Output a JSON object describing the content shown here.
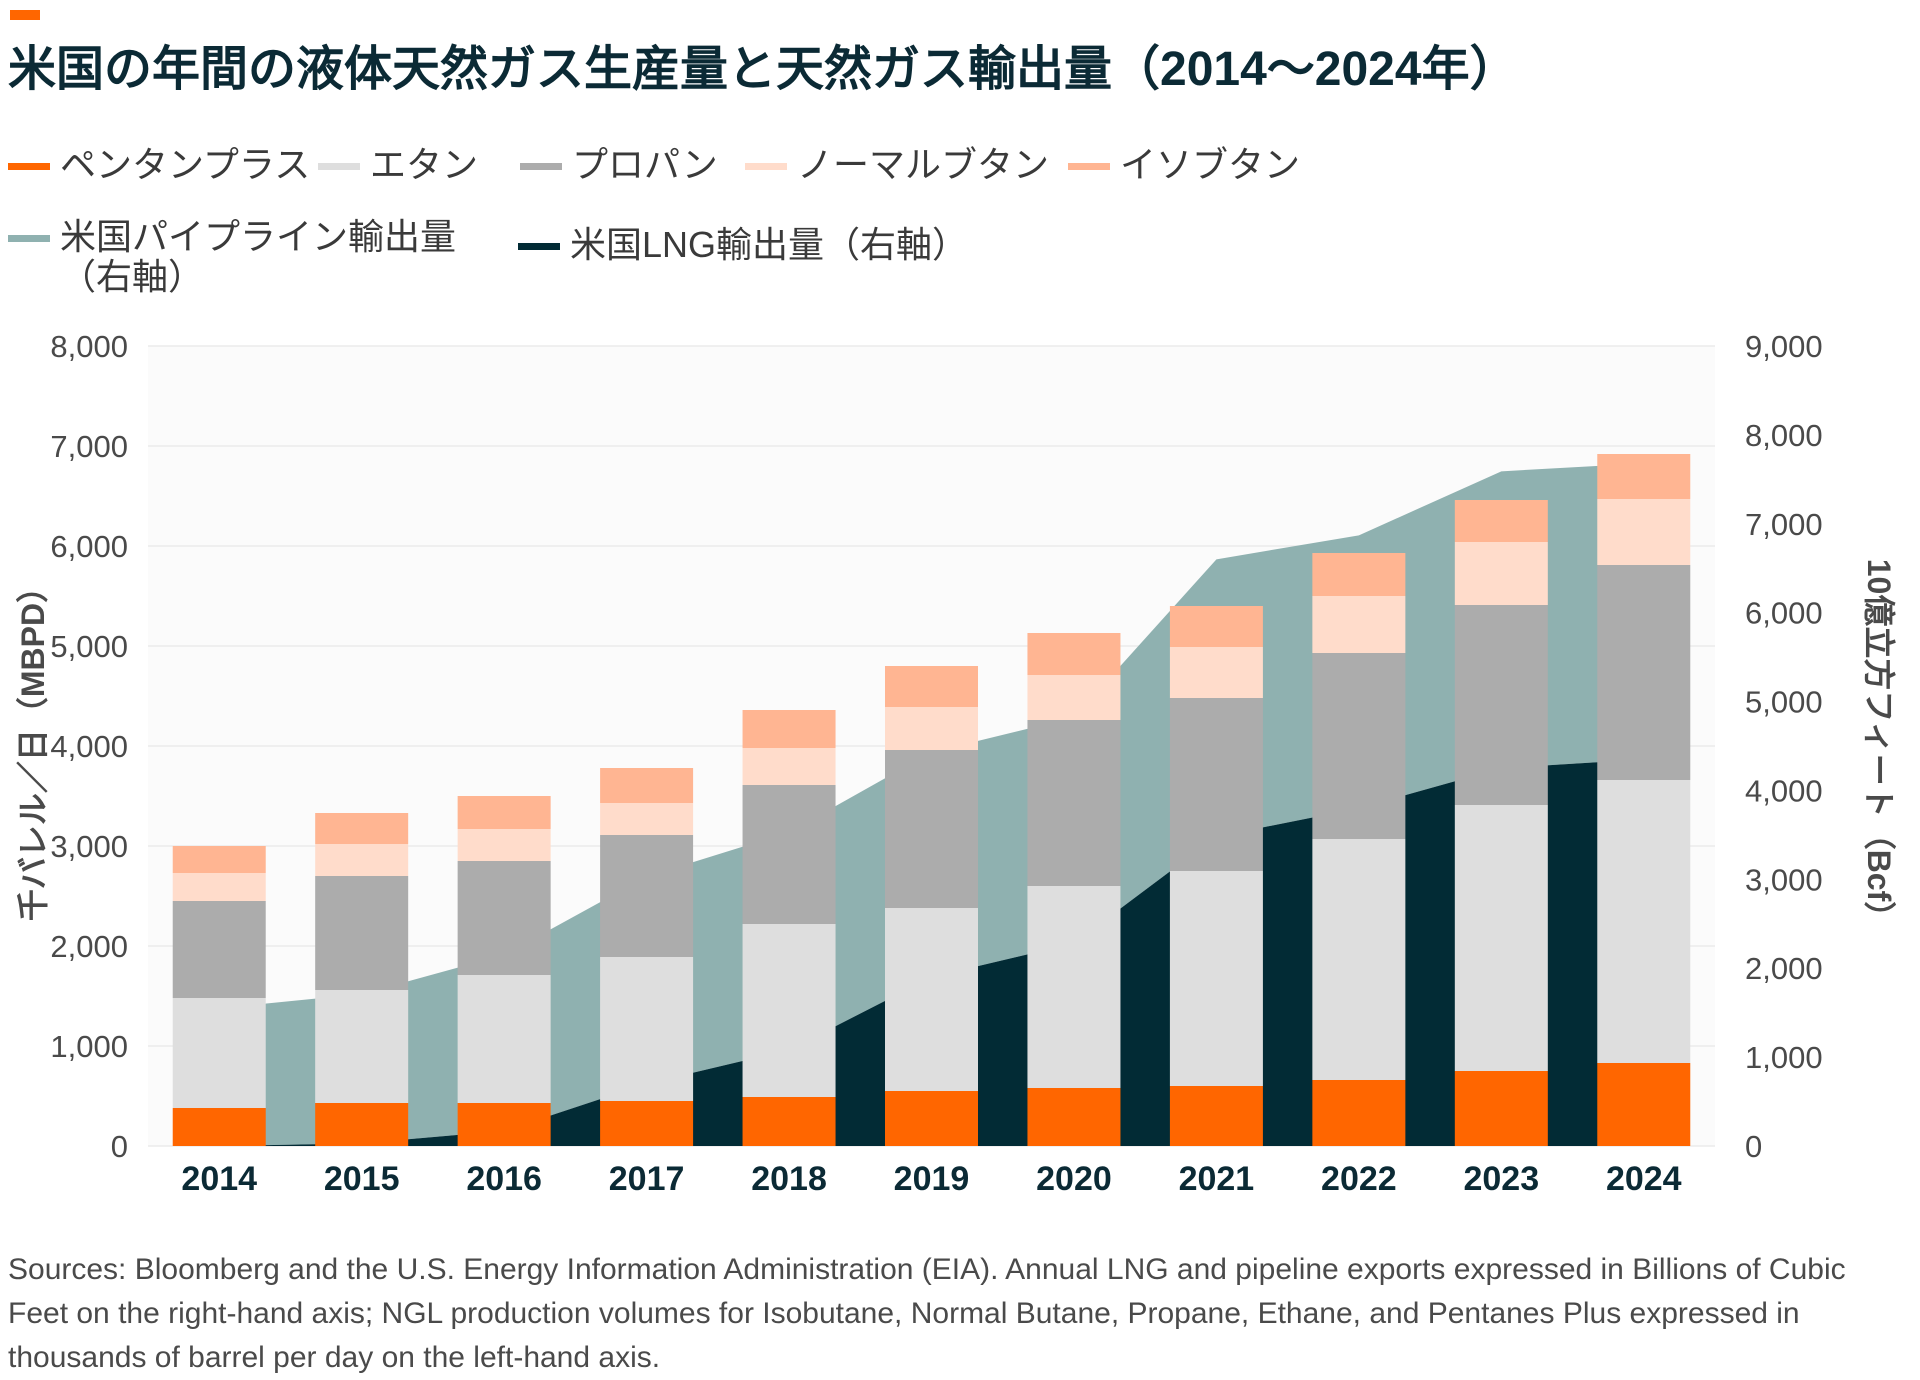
{
  "title": "米国の年間の液体天然ガス生産量と天然ガス輸出量（2014〜2024年）",
  "source": "Sources: Bloomberg and the U.S. Energy Information Administration (EIA). Annual LNG and pipeline exports expressed in Billions of Cubic Feet on the right-hand axis; NGL production volumes for Isobutane, Normal Butane, Propane, Ethane, and Pentanes Plus expressed in thousands of barrel per day on the left-hand axis.",
  "legend": [
    {
      "label": "ペンタンプラス",
      "color": "#ff6600"
    },
    {
      "label": "エタン",
      "color": "#dedede"
    },
    {
      "label": "プロパン",
      "color": "#acacac"
    },
    {
      "label": "ノーマルブタン",
      "color": "#ffdccb"
    },
    {
      "label": "イソブタン",
      "color": "#ffb592"
    },
    {
      "label": "米国パイプライン輸出量\n（右軸）",
      "color": "#8fb1b0"
    },
    {
      "label": "米国LNG輸出量（右軸）",
      "color": "#022b35"
    }
  ],
  "chart_data": {
    "type": "bar",
    "categories": [
      "2014",
      "2015",
      "2016",
      "2017",
      "2018",
      "2019",
      "2020",
      "2021",
      "2022",
      "2023",
      "2024"
    ],
    "ylabel": "千バレル／日（MBPD）",
    "ylabel_right": "10億立方フィート（Bcf）",
    "ylim": [
      0,
      8000
    ],
    "ylim_right": [
      0,
      9000
    ],
    "yticks": [
      "0",
      "1,000",
      "2,000",
      "3,000",
      "4,000",
      "5,000",
      "6,000",
      "7,000",
      "8,000"
    ],
    "yticks_right": [
      "0",
      "1,000",
      "2,000",
      "3,000",
      "4,000",
      "5,000",
      "6,000",
      "7,000",
      "8,000",
      "9,000"
    ],
    "grid": true,
    "stacked_series": [
      {
        "name": "ペンタンプラス",
        "color": "#ff6600",
        "values": [
          380,
          430,
          430,
          450,
          490,
          550,
          580,
          600,
          660,
          750,
          830
        ]
      },
      {
        "name": "エタン",
        "color": "#dedede",
        "values": [
          1100,
          1130,
          1280,
          1440,
          1730,
          1830,
          2020,
          2150,
          2410,
          2660,
          2830
        ]
      },
      {
        "name": "プロパン",
        "color": "#acacac",
        "values": [
          970,
          1140,
          1140,
          1220,
          1390,
          1580,
          1660,
          1730,
          1860,
          2000,
          2150
        ]
      },
      {
        "name": "ノーマルブタン",
        "color": "#ffdccb",
        "values": [
          280,
          320,
          320,
          320,
          370,
          430,
          450,
          510,
          570,
          630,
          660
        ]
      },
      {
        "name": "イソブタン",
        "color": "#ffb592",
        "values": [
          270,
          310,
          330,
          350,
          380,
          410,
          420,
          410,
          430,
          420,
          450
        ]
      }
    ],
    "area_series_right_axis": [
      {
        "name": "米国LNG輸出量（右軸）",
        "color": "#022b35",
        "values": [
          0,
          30,
          170,
          700,
          1080,
          1900,
          2280,
          3480,
          3800,
          4250,
          4350
        ]
      },
      {
        "name": "米国パイプライン輸出量（右軸）",
        "color": "#8fb1b0",
        "values": [
          1550,
          1680,
          1980,
          2330,
          2450,
          2530,
          2540,
          3120,
          3070,
          3340,
          3330
        ]
      }
    ]
  }
}
